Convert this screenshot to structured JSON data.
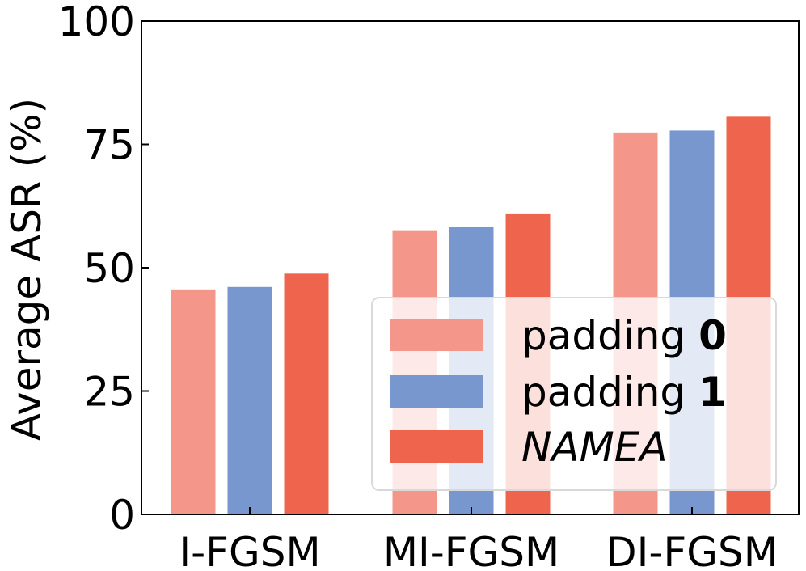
{
  "chart_data": {
    "type": "bar",
    "ylabel": "Average ASR (%)",
    "ylim": [
      0,
      100
    ],
    "yticks": [
      "0",
      "25",
      "50",
      "75",
      "100"
    ],
    "categories": [
      "I-FGSM",
      "MI-FGSM",
      "DI-FGSM"
    ],
    "series": [
      {
        "name_prefix": "padding",
        "name_bold": "0",
        "color": "#F4978A",
        "values": [
          45.6,
          57.6,
          77.4
        ]
      },
      {
        "name_prefix": "padding",
        "name_bold": "1",
        "color": "#7797CE",
        "values": [
          46.1,
          58.2,
          77.8
        ]
      },
      {
        "name_italic": "NAMEA",
        "color": "#EF644C",
        "values": [
          48.8,
          61.0,
          80.6
        ]
      }
    ],
    "legend": {
      "placement": "lower-right"
    },
    "grid": false
  }
}
